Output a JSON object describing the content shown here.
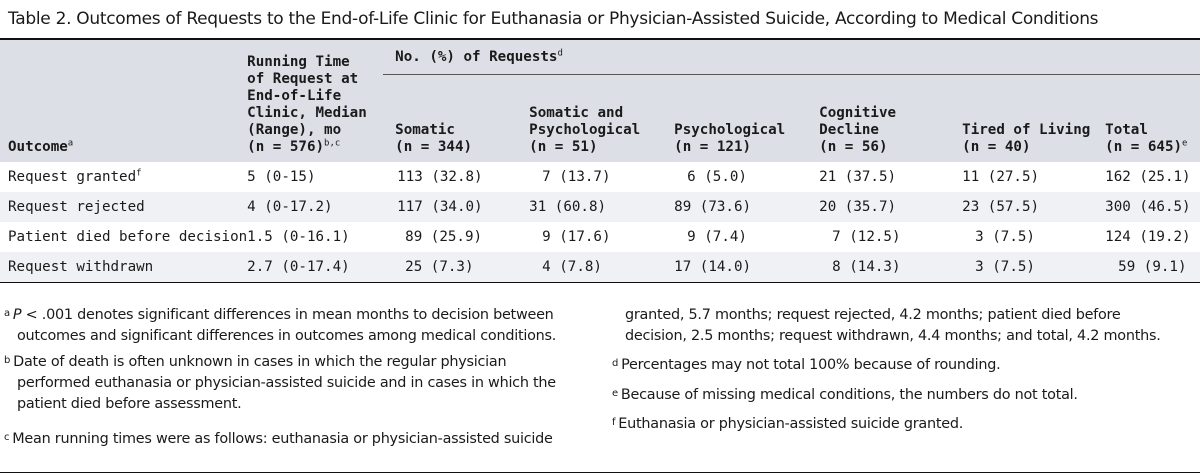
{
  "title": "Table 2. Outcomes of Requests to the End-of-Life Clinic for Euthanasia or Physician-Assisted Suicide, According to Medical Conditions",
  "header": {
    "outcome": "Outcome",
    "outcome_sup": "a",
    "running_l1": "Running Time",
    "running_l2": "of Request at",
    "running_l3": "End-of-Life",
    "running_l4": "Clinic, Median",
    "running_l5": "(Range), mo",
    "running_l6": "(n = 576)",
    "running_sup": "b,c",
    "group": "No. (%) of Requests",
    "group_sup": "d",
    "somatic_l1": "Somatic",
    "somatic_l2": "(n = 344)",
    "sp_l1": "Somatic and",
    "sp_l2": "Psychological",
    "sp_l3": "(n = 51)",
    "psy_l1": "Psychological",
    "psy_l2": "(n = 121)",
    "cog_l1": "Cognitive",
    "cog_l2": "Decline",
    "cog_l3": "(n = 56)",
    "tired_l1": "Tired of Living",
    "tired_l2": "(n = 40)",
    "total_l1": "Total",
    "total_l2": "(n = 645)",
    "total_sup": "e"
  },
  "rows": [
    {
      "outcome": "Request granted",
      "sup": "f",
      "running": "5 (0-15)",
      "somatic": "113 (32.8)",
      "sp": "7 (13.7)",
      "psy": "6 (5.0)",
      "cog": "21 (37.5)",
      "tired": "11 (27.5)",
      "total": "162 (25.1)"
    },
    {
      "outcome": "Request rejected",
      "sup": "",
      "running": "4 (0-17.2)",
      "somatic": "117 (34.0)",
      "sp": "31 (60.8)",
      "psy": "89 (73.6)",
      "cog": "20 (35.7)",
      "tired": "23 (57.5)",
      "total": "300 (46.5)"
    },
    {
      "outcome": "Patient died before decision",
      "sup": "",
      "running": "1.5 (0-16.1)",
      "somatic": "89 (25.9)",
      "sp": "9 (17.6)",
      "psy": "9 (7.4)",
      "cog": "7 (12.5)",
      "tired": "3 (7.5)",
      "total": "124 (19.2)"
    },
    {
      "outcome": "Request withdrawn",
      "sup": "",
      "running": "2.7 (0-17.4)",
      "somatic": "25 (7.3)",
      "sp": "4 (7.8)",
      "psy": "17 (14.0)",
      "cog": "8 (14.3)",
      "tired": "3 (7.5)",
      "total": "59 (9.1)"
    }
  ],
  "footnotes": {
    "a_mark": "a",
    "a_p": "P",
    "a_line1": " < .001 denotes significant differences in mean months to decision between",
    "a_line2": "outcomes and significant differences in outcomes among medical conditions.",
    "b_mark": "b",
    "b_line1": "Date of death is often unknown in cases in which the regular physician",
    "b_line2": "performed euthanasia or physician-assisted suicide and in cases in which the",
    "b_line3": "patient died before assessment.",
    "c_mark": "c",
    "c_line1": "Mean running times were as follows: euthanasia or physician-assisted suicide",
    "c_line2": "granted, 5.7 months; request rejected, 4.2 months; patient died before",
    "c_line3": "decision, 2.5 months; request withdrawn, 4.4 months; and total, 4.2 months.",
    "d_mark": "d",
    "d_text": "Percentages may not total 100% because of rounding.",
    "e_mark": "e",
    "e_text": "Because of missing medical conditions, the numbers do not total.",
    "f_mark": "f",
    "f_text": "Euthanasia or physician-assisted suicide granted."
  }
}
